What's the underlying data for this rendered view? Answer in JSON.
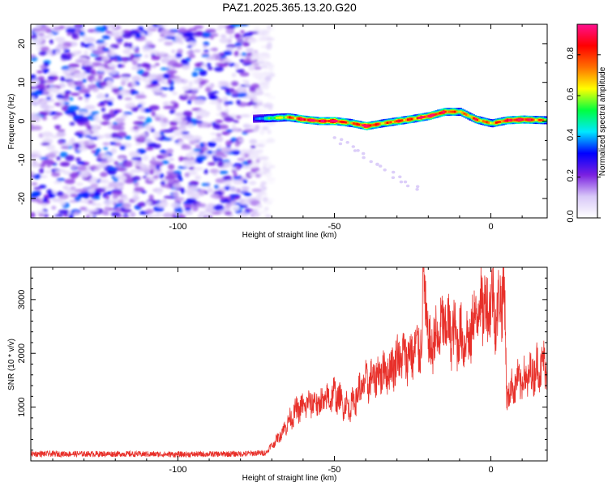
{
  "title": "PAZ1.2025.365.13.20.G20",
  "chart_data": [
    {
      "type": "heatmap",
      "name": "spectrogram",
      "xlabel": "Height of straight line (km)",
      "ylabel": "Frequency (Hz)",
      "xlim": [
        -147,
        18
      ],
      "ylim": [
        -25,
        25
      ],
      "xticks": [
        -100,
        -50,
        0
      ],
      "xtick_labels": [
        "-100",
        "-50",
        "0"
      ],
      "yticks": [
        -20,
        -10,
        0,
        10,
        20
      ],
      "ytick_labels": [
        "-20",
        "-10",
        "0",
        "10",
        "20"
      ],
      "noise_region_x": [
        -147,
        -72
      ],
      "signal_ridge": {
        "x": [
          -76,
          -70,
          -65,
          -60,
          -55,
          -50,
          -45,
          -40,
          -35,
          -30,
          -25,
          -20,
          -15,
          -10,
          -5,
          0,
          5,
          10,
          18
        ],
        "frequency": [
          0.6,
          0.8,
          1.0,
          0.4,
          0.0,
          0.0,
          -0.5,
          -1.3,
          -0.6,
          0.0,
          0.6,
          1.3,
          2.4,
          2.4,
          0.4,
          -0.6,
          0.2,
          0.4,
          0.2
        ],
        "amplitude": [
          0.15,
          0.45,
          0.6,
          0.85,
          0.8,
          0.9,
          0.6,
          0.95,
          0.6,
          0.75,
          0.7,
          0.85,
          0.8,
          0.6,
          0.7,
          0.6,
          0.8,
          0.9,
          0.5
        ]
      },
      "faint_tail": {
        "x": [
          -50,
          -23
        ],
        "frequency": [
          -4,
          -18
        ]
      },
      "colorbar": {
        "label": "Normalized spectral amplitude",
        "range": [
          0,
          0.95
        ],
        "ticks": [
          0.0,
          0.2,
          0.4,
          0.6,
          0.8
        ],
        "tick_labels": [
          "0.0",
          "0.2",
          "0.4",
          "0.6",
          "0.8"
        ],
        "colors": [
          "#ffffff",
          "#d8c8f8",
          "#7a20e0",
          "#0000ff",
          "#00e8ff",
          "#00ff40",
          "#ffff00",
          "#ff7000",
          "#ff0000",
          "#ff1090"
        ]
      }
    },
    {
      "type": "line",
      "name": "snr",
      "xlabel": "Height of straight line (km)",
      "ylabel": "SNR (10 * v/v)",
      "xlim": [
        -147,
        18
      ],
      "ylim": [
        0,
        3600
      ],
      "xticks": [
        -100,
        -50,
        0
      ],
      "xtick_labels": [
        "-100",
        "-50",
        "0"
      ],
      "yticks": [
        1000,
        2000,
        3000
      ],
      "ytick_labels": [
        "1000",
        "2000",
        "3000"
      ],
      "color": "#e8302a",
      "series": {
        "x": [
          -147,
          -120,
          -100,
          -80,
          -72,
          -68,
          -65,
          -62,
          -60,
          -57,
          -55,
          -52,
          -50,
          -47,
          -45,
          -42,
          -40,
          -37,
          -35,
          -32,
          -30,
          -27,
          -25,
          -22,
          -21.5,
          -20,
          -17,
          -15,
          -12,
          -10,
          -7,
          -5,
          -3,
          -1,
          0,
          2,
          4,
          4.5,
          5,
          8,
          12,
          15,
          18
        ],
        "y": [
          130,
          130,
          120,
          130,
          150,
          420,
          700,
          950,
          1000,
          1100,
          1050,
          1150,
          1250,
          1050,
          1000,
          1300,
          1450,
          1550,
          1650,
          1700,
          1900,
          1950,
          2000,
          2200,
          3600,
          2100,
          2300,
          2550,
          2350,
          2300,
          2250,
          2700,
          2950,
          2850,
          3050,
          2700,
          3300,
          2800,
          1200,
          1450,
          1550,
          1750,
          1800
        ]
      }
    }
  ]
}
